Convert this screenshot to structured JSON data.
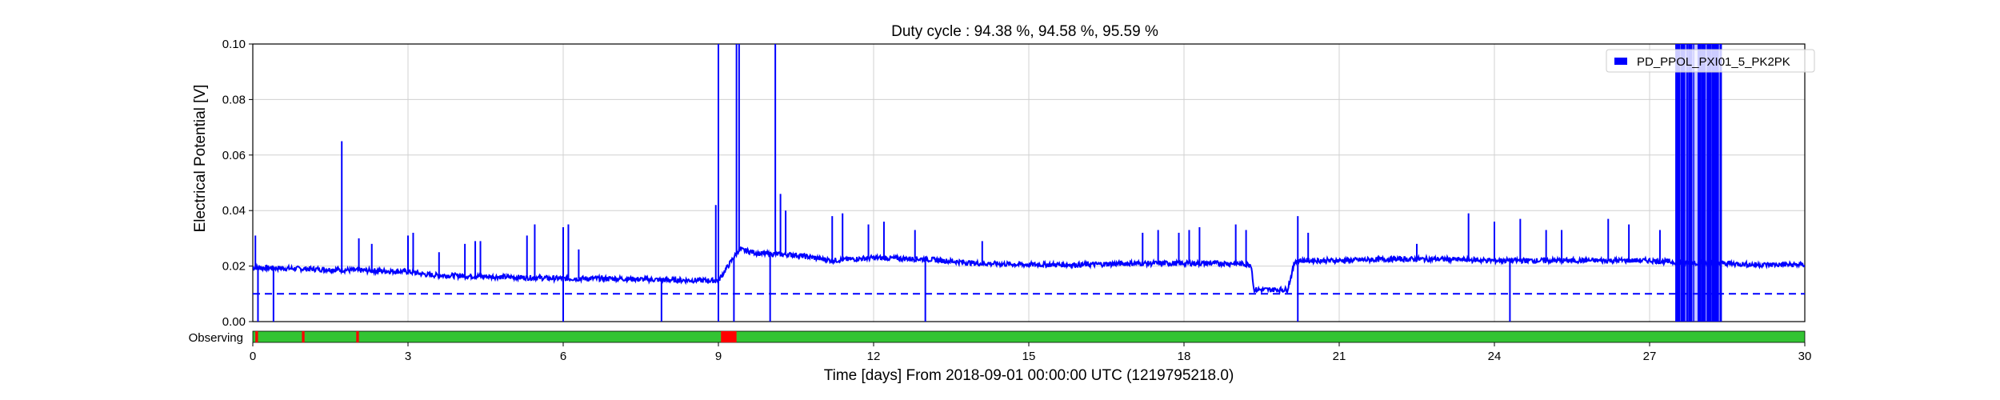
{
  "chart_data": {
    "type": "line",
    "title": "Duty cycle : 94.38 %, 94.58 %, 95.59 %",
    "xlabel": "Time [days] From 2018-09-01 00:00:00 UTC (1219795218.0)",
    "ylabel": "Electrical Potential [V]",
    "xlim": [
      0,
      30
    ],
    "ylim": [
      0,
      0.1
    ],
    "xticks": [
      0,
      3,
      6,
      9,
      12,
      15,
      18,
      21,
      24,
      27,
      30
    ],
    "xtick_labels": [
      "0",
      "3",
      "6",
      "9",
      "12",
      "15",
      "18",
      "21",
      "24",
      "27",
      "30"
    ],
    "yticks": [
      0,
      0.02,
      0.04,
      0.06,
      0.08,
      0.1
    ],
    "ytick_labels": [
      "0.00",
      "0.02",
      "0.04",
      "0.06",
      "0.08",
      "0.10"
    ],
    "grid": true,
    "legend_position": "top-right",
    "threshold": {
      "value": 0.01,
      "style": "dashed",
      "color": "#0000ff"
    },
    "series": [
      {
        "name": "PD_PPOL_PXI01_5_PK2PK",
        "color": "#0000ff",
        "baseline": [
          [
            0,
            0.0195
          ],
          [
            1,
            0.019
          ],
          [
            2,
            0.0185
          ],
          [
            3,
            0.018
          ],
          [
            3.4,
            0.0168
          ],
          [
            4,
            0.0165
          ],
          [
            5,
            0.016
          ],
          [
            6,
            0.0155
          ],
          [
            7,
            0.0155
          ],
          [
            8,
            0.015
          ],
          [
            8.9,
            0.0148
          ],
          [
            9.0,
            0.0148
          ],
          [
            9.4,
            0.026
          ],
          [
            9.8,
            0.0245
          ],
          [
            10.5,
            0.024
          ],
          [
            11.2,
            0.022
          ],
          [
            12,
            0.023
          ],
          [
            13,
            0.0225
          ],
          [
            14,
            0.021
          ],
          [
            15,
            0.0205
          ],
          [
            16,
            0.0205
          ],
          [
            17,
            0.021
          ],
          [
            18,
            0.021
          ],
          [
            19,
            0.021
          ],
          [
            19.3,
            0.0205
          ],
          [
            19.35,
            0.0115
          ],
          [
            20.0,
            0.0115
          ],
          [
            20.15,
            0.022
          ],
          [
            21,
            0.022
          ],
          [
            22,
            0.0225
          ],
          [
            23,
            0.0225
          ],
          [
            24,
            0.022
          ],
          [
            25,
            0.022
          ],
          [
            26,
            0.022
          ],
          [
            27,
            0.022
          ],
          [
            27.4,
            0.0215
          ],
          [
            28.5,
            0.021
          ],
          [
            29,
            0.0205
          ],
          [
            30,
            0.0205
          ]
        ],
        "spikes_up": [
          [
            0.05,
            0.031
          ],
          [
            1.72,
            0.065
          ],
          [
            2.05,
            0.03
          ],
          [
            2.3,
            0.028
          ],
          [
            3.0,
            0.031
          ],
          [
            3.1,
            0.032
          ],
          [
            3.6,
            0.025
          ],
          [
            4.1,
            0.028
          ],
          [
            4.3,
            0.029
          ],
          [
            4.4,
            0.029
          ],
          [
            5.3,
            0.031
          ],
          [
            5.45,
            0.035
          ],
          [
            6.0,
            0.034
          ],
          [
            6.1,
            0.035
          ],
          [
            6.3,
            0.026
          ],
          [
            8.95,
            0.042
          ],
          [
            9.0,
            0.1
          ],
          [
            9.35,
            0.1
          ],
          [
            9.4,
            0.1
          ],
          [
            10.1,
            0.1
          ],
          [
            10.2,
            0.046
          ],
          [
            10.3,
            0.04
          ],
          [
            11.2,
            0.038
          ],
          [
            11.4,
            0.039
          ],
          [
            11.9,
            0.035
          ],
          [
            12.2,
            0.036
          ],
          [
            12.8,
            0.033
          ],
          [
            14.1,
            0.029
          ],
          [
            17.2,
            0.032
          ],
          [
            17.5,
            0.033
          ],
          [
            17.9,
            0.032
          ],
          [
            18.1,
            0.033
          ],
          [
            18.3,
            0.034
          ],
          [
            19.0,
            0.035
          ],
          [
            19.2,
            0.033
          ],
          [
            20.2,
            0.038
          ],
          [
            20.4,
            0.032
          ],
          [
            22.5,
            0.028
          ],
          [
            23.5,
            0.039
          ],
          [
            24.0,
            0.036
          ],
          [
            24.5,
            0.037
          ],
          [
            25.0,
            0.033
          ],
          [
            25.3,
            0.033
          ],
          [
            26.2,
            0.037
          ],
          [
            26.6,
            0.035
          ],
          [
            27.2,
            0.033
          ]
        ],
        "spikes_down": [
          [
            0.1,
            0.0
          ],
          [
            0.4,
            0.0
          ],
          [
            6.0,
            0.0
          ],
          [
            7.9,
            0.0
          ],
          [
            9.0,
            0.0
          ],
          [
            9.3,
            0.0
          ],
          [
            10.0,
            0.0
          ],
          [
            13.0,
            0.0
          ],
          [
            20.2,
            0.0
          ],
          [
            24.3,
            0.0
          ]
        ],
        "dense_band": {
          "x_start": 27.5,
          "x_end": 28.4,
          "y_min": 0.0,
          "y_max": 0.1
        }
      }
    ],
    "state_bar": {
      "label": "Observing",
      "on_color": "#33c433",
      "off_color": "#ff0000",
      "segments_off": [
        [
          0.05,
          0.1
        ],
        [
          0.95,
          1.0
        ],
        [
          2.0,
          2.05
        ],
        [
          9.05,
          9.35
        ]
      ]
    }
  }
}
